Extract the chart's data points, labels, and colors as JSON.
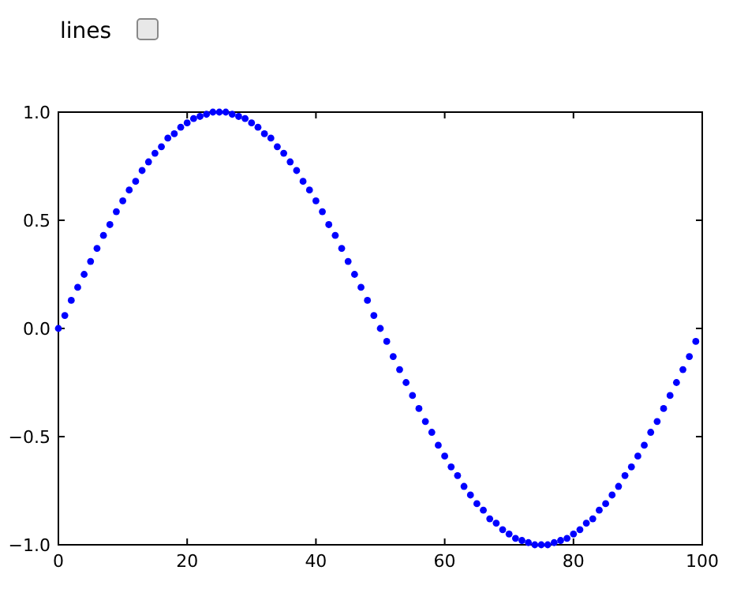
{
  "chart_data": {
    "type": "scatter",
    "annotations": [
      "lines"
    ],
    "x": [
      0,
      1,
      2,
      3,
      4,
      5,
      6,
      7,
      8,
      9,
      10,
      11,
      12,
      13,
      14,
      15,
      16,
      17,
      18,
      19,
      20,
      21,
      22,
      23,
      24,
      25,
      26,
      27,
      28,
      29,
      30,
      31,
      32,
      33,
      34,
      35,
      36,
      37,
      38,
      39,
      40,
      41,
      42,
      43,
      44,
      45,
      46,
      47,
      48,
      49,
      50,
      51,
      52,
      53,
      54,
      55,
      56,
      57,
      58,
      59,
      60,
      61,
      62,
      63,
      64,
      65,
      66,
      67,
      68,
      69,
      70,
      71,
      72,
      73,
      74,
      75,
      76,
      77,
      78,
      79,
      80,
      81,
      82,
      83,
      84,
      85,
      86,
      87,
      88,
      89,
      90,
      91,
      92,
      93,
      94,
      95,
      96,
      97,
      98,
      99
    ],
    "values": [
      0,
      0.06,
      0.13,
      0.19,
      0.25,
      0.31,
      0.37,
      0.43,
      0.48,
      0.54,
      0.59,
      0.64,
      0.68,
      0.73,
      0.77,
      0.81,
      0.84,
      0.88,
      0.9,
      0.93,
      0.95,
      0.97,
      0.98,
      0.99,
      1.0,
      1.0,
      1.0,
      0.99,
      0.98,
      0.97,
      0.95,
      0.93,
      0.9,
      0.88,
      0.84,
      0.81,
      0.77,
      0.73,
      0.68,
      0.64,
      0.59,
      0.54,
      0.48,
      0.43,
      0.37,
      0.31,
      0.25,
      0.19,
      0.13,
      0.06,
      0,
      -0.06,
      -0.13,
      -0.19,
      -0.25,
      -0.31,
      -0.37,
      -0.43,
      -0.48,
      -0.54,
      -0.59,
      -0.64,
      -0.68,
      -0.73,
      -0.77,
      -0.81,
      -0.84,
      -0.88,
      -0.9,
      -0.93,
      -0.95,
      -0.97,
      -0.98,
      -0.99,
      -1.0,
      -1.0,
      -1.0,
      -0.99,
      -0.98,
      -0.97,
      -0.95,
      -0.93,
      -0.9,
      -0.88,
      -0.84,
      -0.81,
      -0.77,
      -0.73,
      -0.68,
      -0.64,
      -0.59,
      -0.54,
      -0.48,
      -0.43,
      -0.37,
      -0.31,
      -0.25,
      -0.19,
      -0.13,
      -0.06
    ],
    "color": "#0000ff",
    "marker": "circle",
    "grid": false,
    "xlim": [
      0,
      100
    ],
    "xticks": [
      0,
      20,
      40,
      60,
      80,
      100
    ],
    "ylim": [
      -1,
      1
    ],
    "yticks": [
      {
        "value": -1,
        "label": "−1.0"
      },
      {
        "value": -0.5,
        "label": "−0.5"
      },
      {
        "value": 0,
        "label": "0.0"
      },
      {
        "value": 0.5,
        "label": "0.5"
      },
      {
        "value": 1,
        "label": "1.0"
      }
    ]
  }
}
